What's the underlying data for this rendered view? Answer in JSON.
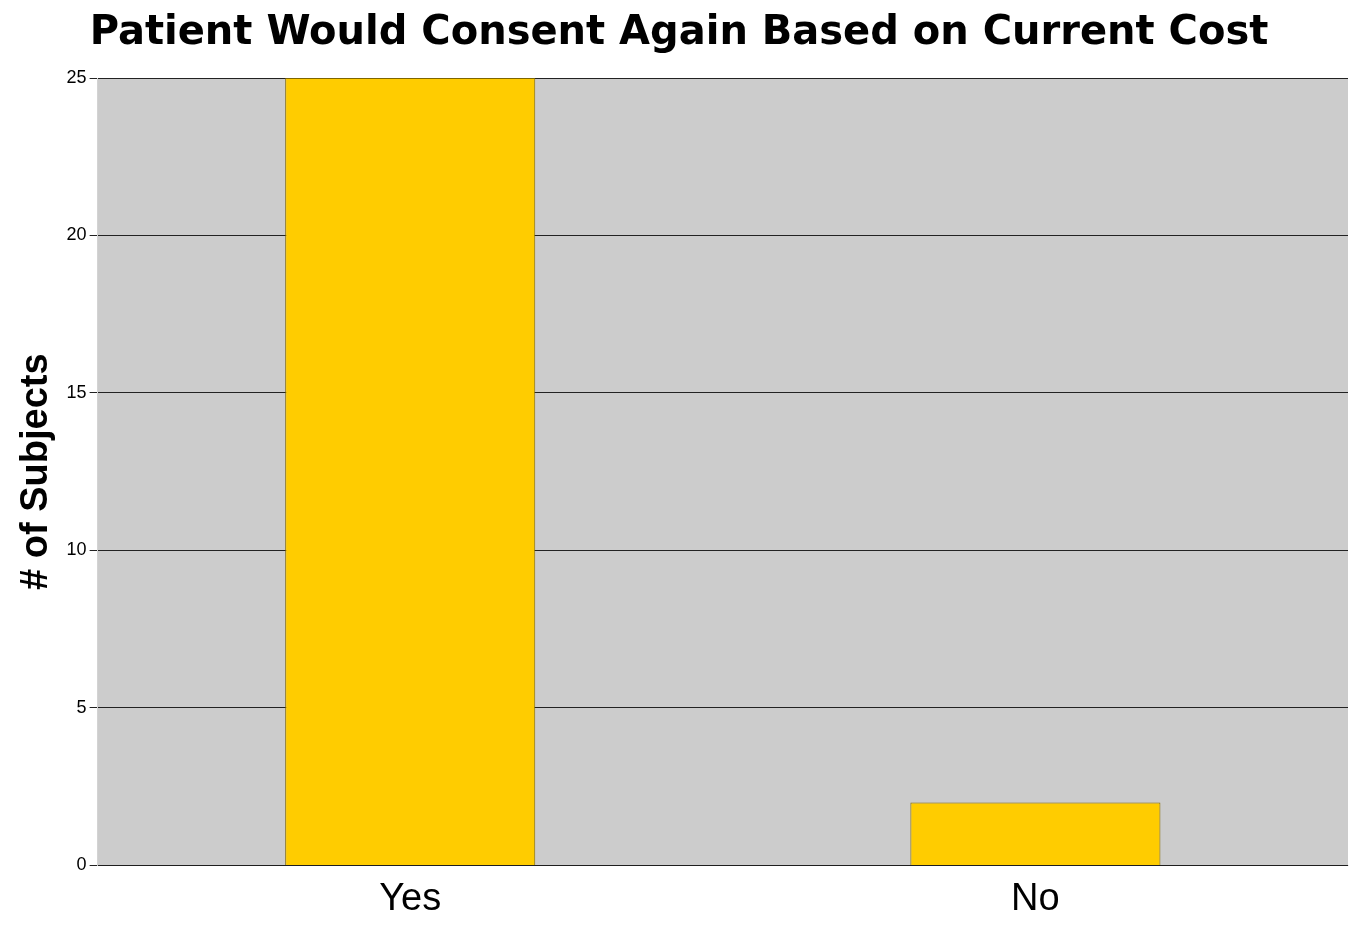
{
  "chart_data": {
    "type": "bar",
    "title": "Patient Would Consent Again Based on Current Cost",
    "ylabel": "# of Subjects",
    "categories": [
      "Yes",
      "No"
    ],
    "values": [
      25,
      2
    ],
    "color": "#ffcc00",
    "ylim": [
      0,
      25
    ],
    "yticks": [
      0,
      5,
      10,
      15,
      20,
      25
    ],
    "grid": "y",
    "legend": false
  }
}
